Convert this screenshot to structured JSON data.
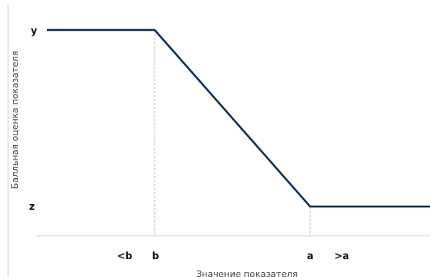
{
  "chart_data": {
    "type": "line",
    "ylabel": "Балльная оценка показателя",
    "xlabel": "Значение показателя",
    "x_ticks": [
      "<b",
      "b",
      "a",
      ">a"
    ],
    "y_ticks": [
      "y",
      "z"
    ],
    "x": [
      "start",
      "b",
      "a",
      "end"
    ],
    "series": [
      {
        "values": [
          "y",
          "y",
          "z",
          "z"
        ]
      }
    ],
    "reference_lines": [
      "b",
      "a"
    ],
    "grid": false,
    "colors": {
      "line": "#12304f",
      "guide": "#bdbdbd",
      "axis": "#d0d0d0",
      "text": "#111111",
      "label": "#444444"
    }
  }
}
